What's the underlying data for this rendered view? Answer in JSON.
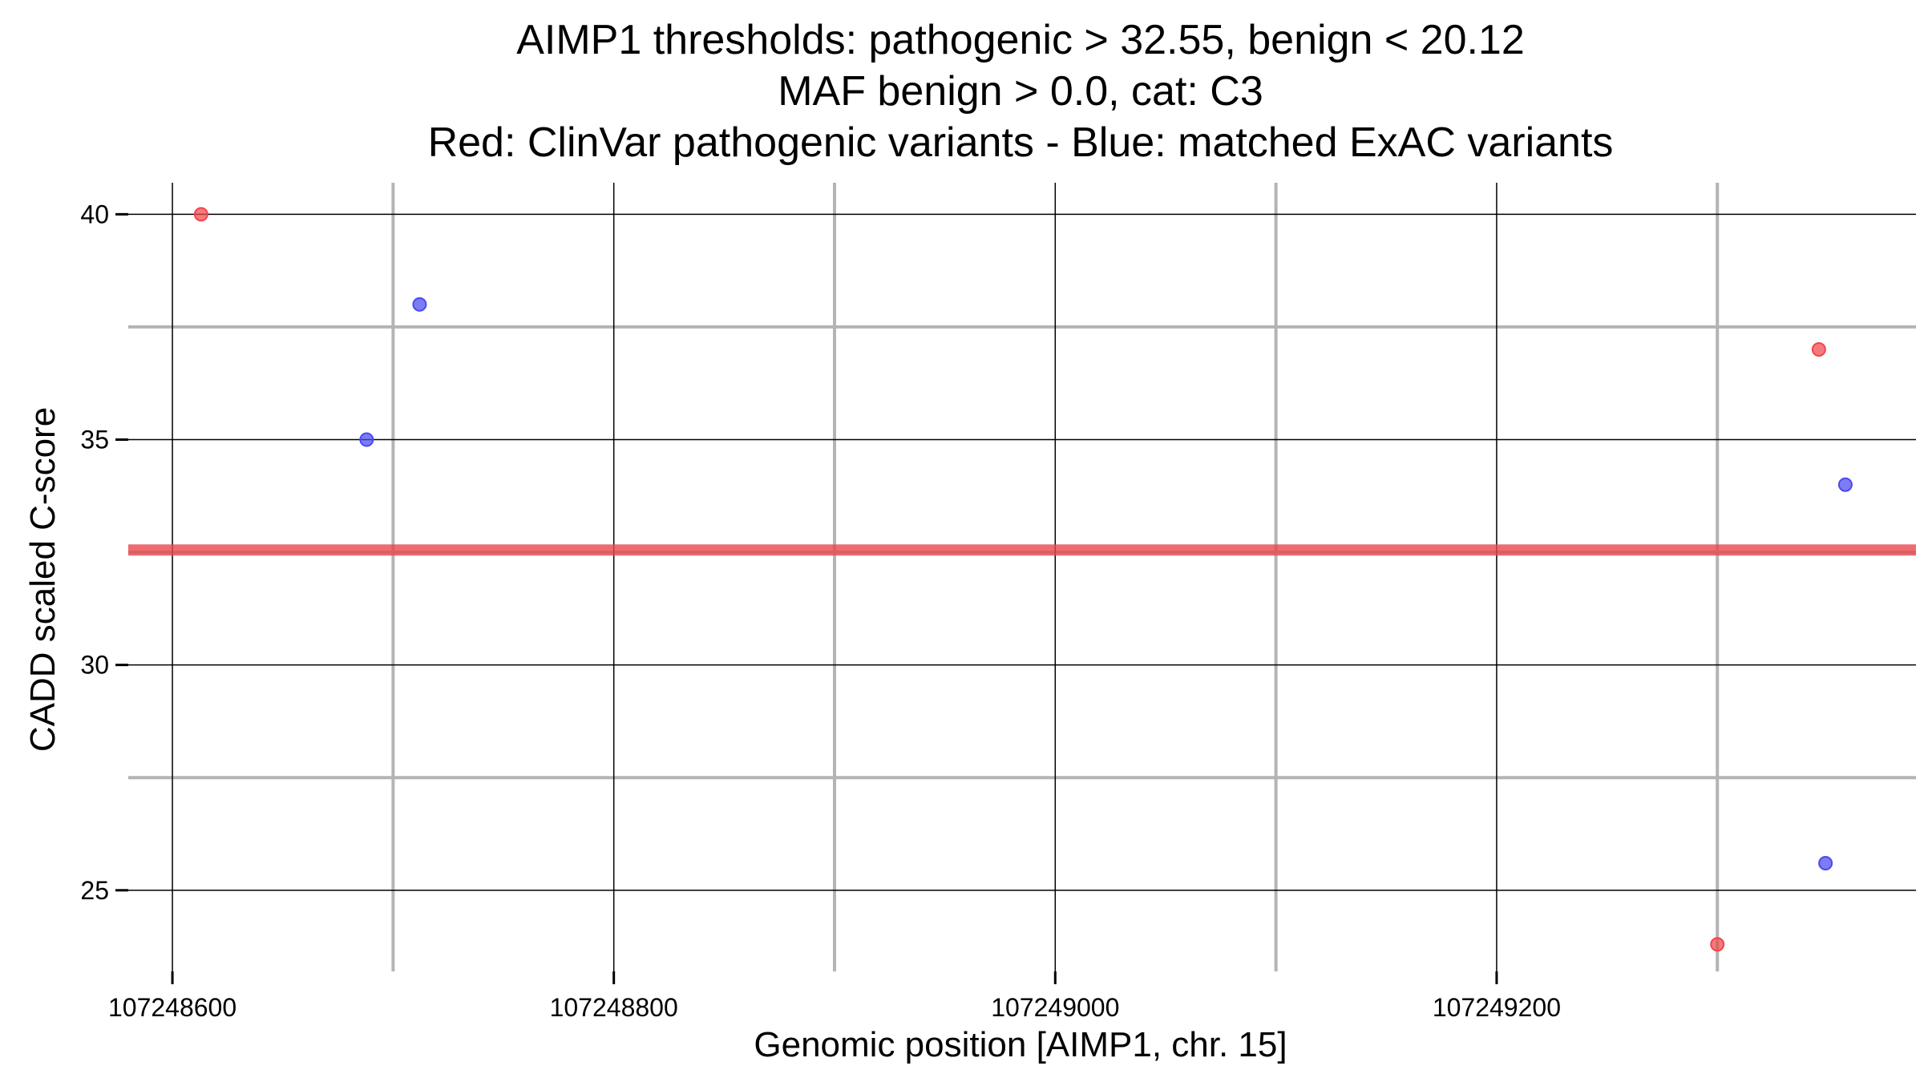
{
  "chart_data": {
    "type": "scatter",
    "title": [
      "AIMP1 thresholds: pathogenic > 32.55, benign < 20.12",
      "MAF benign > 0.0, cat: C3",
      "Red: ClinVar pathogenic variants - Blue: matched ExAC variants"
    ],
    "xlabel": "Genomic position [AIMP1, chr. 15]",
    "ylabel": "CADD scaled C-score",
    "xlim": [
      107248580,
      107249390
    ],
    "ylim": [
      23.2,
      40.7
    ],
    "x_ticks": [
      107248600,
      107248800,
      107249000,
      107249200
    ],
    "x_tick_labels": [
      "107248600",
      "107248800",
      "107249000",
      "107249200"
    ],
    "x_minor_grid": [
      107248700,
      107248900,
      107249100,
      107249300
    ],
    "y_ticks": [
      25,
      30,
      35,
      40
    ],
    "y_tick_labels": [
      "25",
      "30",
      "35",
      "40"
    ],
    "y_minor_grid": [
      27.5,
      32.5,
      37.5
    ],
    "grid": true,
    "thresholds": [
      {
        "name": "pathogenic",
        "value": 32.55,
        "color": "#e8474d"
      }
    ],
    "series": [
      {
        "name": "ClinVar pathogenic variants",
        "color": "#f0464b",
        "points": [
          {
            "x": 107248613,
            "y": 40.0
          },
          {
            "x": 107249346,
            "y": 37.0
          },
          {
            "x": 107249300,
            "y": 23.8
          }
        ]
      },
      {
        "name": "matched ExAC variants",
        "color": "#4a4af0",
        "points": [
          {
            "x": 107248712,
            "y": 38.0
          },
          {
            "x": 107248688,
            "y": 35.0
          },
          {
            "x": 107249358,
            "y": 34.0
          },
          {
            "x": 107249349,
            "y": 25.6
          }
        ]
      }
    ]
  }
}
